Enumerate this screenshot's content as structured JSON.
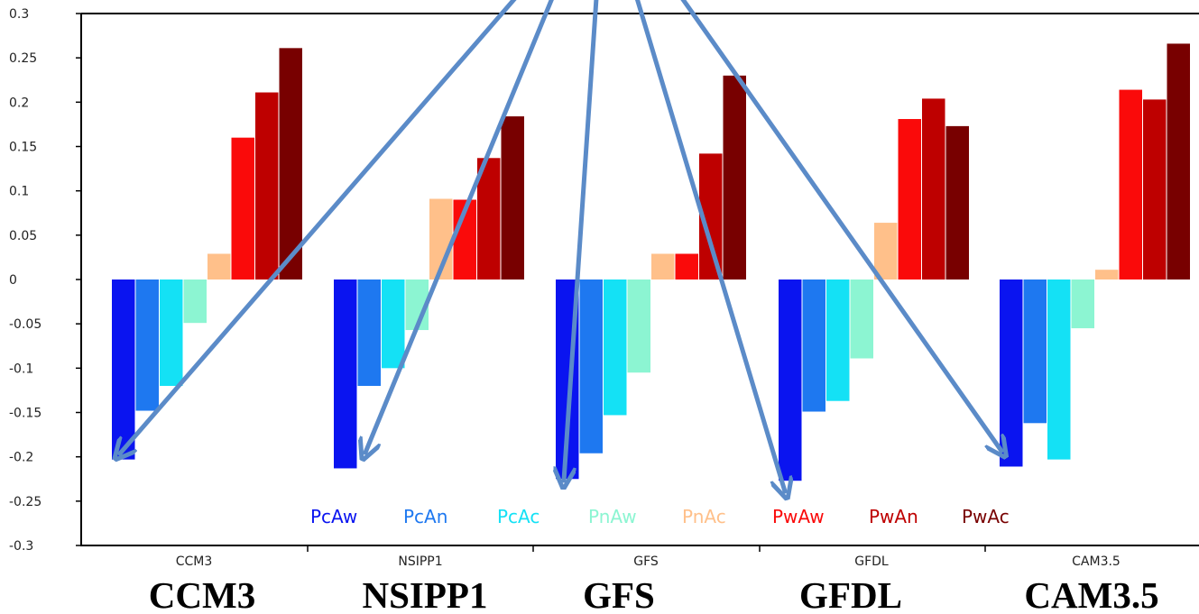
{
  "chart_data": {
    "type": "bar",
    "title": "",
    "xlabel": "",
    "ylabel": "",
    "ylim": [
      -0.3,
      0.3
    ],
    "y_ticks": [
      "0.3",
      "0.25",
      "0.2",
      "0.15",
      "0.1",
      "0.05",
      "0",
      "-0.05",
      "-0.1",
      "-0.15",
      "-0.2",
      "-0.25",
      "-0.3"
    ],
    "y_tick_values": [
      0.3,
      0.25,
      0.2,
      0.15,
      0.1,
      0.05,
      0,
      -0.05,
      -0.1,
      -0.15,
      -0.2,
      -0.25,
      -0.3
    ],
    "grid": false,
    "legend_position": "bottom-center inside plot",
    "categories": [
      "CCM3",
      "NSIPP1",
      "GFS",
      "GFDL",
      "CAM3.5"
    ],
    "big_labels": [
      "CCM3",
      "NSIPP1",
      "GFS",
      "GFDL",
      "CAM3.5"
    ],
    "series": [
      {
        "name": "PcAw",
        "color": "#0a14f0",
        "values": [
          -0.203,
          -0.213,
          -0.225,
          -0.227,
          -0.211
        ]
      },
      {
        "name": "PcAn",
        "color": "#1e78f0",
        "values": [
          -0.148,
          -0.12,
          -0.196,
          -0.149,
          -0.162
        ]
      },
      {
        "name": "PcAc",
        "color": "#14e1f5",
        "values": [
          -0.12,
          -0.1,
          -0.153,
          -0.137,
          -0.203
        ]
      },
      {
        "name": "PnAw",
        "color": "#8cf5d2",
        "values": [
          -0.049,
          -0.057,
          -0.105,
          -0.089,
          -0.055
        ]
      },
      {
        "name": "PnAc",
        "color": "#ffc08a",
        "values": [
          0.029,
          0.091,
          0.029,
          0.064,
          0.011
        ]
      },
      {
        "name": "PwAw",
        "color": "#fa0a0a",
        "values": [
          0.16,
          0.09,
          0.029,
          0.181,
          0.214
        ]
      },
      {
        "name": "PwAn",
        "color": "#be0000",
        "values": [
          0.211,
          0.137,
          0.142,
          0.204,
          0.203
        ]
      },
      {
        "name": "PwAc",
        "color": "#780000",
        "values": [
          0.261,
          0.184,
          0.23,
          0.173,
          0.266
        ]
      }
    ],
    "arrow_color": "#5b8bc8",
    "arrows": [
      {
        "from": [
          0.06,
          0.33
        ],
        "to": "CCM3",
        "series": "PcAw"
      },
      {
        "from": [
          0.035,
          0.33
        ],
        "to": "NSIPP1",
        "series": "PcAw"
      },
      {
        "from": [
          0.02,
          0.33
        ],
        "to": "GFS",
        "series": "PcAw"
      },
      {
        "from": [
          0.045,
          0.33
        ],
        "to": "GFDL",
        "series": "PcAw"
      },
      {
        "from": [
          0.08,
          0.33
        ],
        "to": "CAM3.5",
        "series": "PcAw"
      }
    ]
  }
}
